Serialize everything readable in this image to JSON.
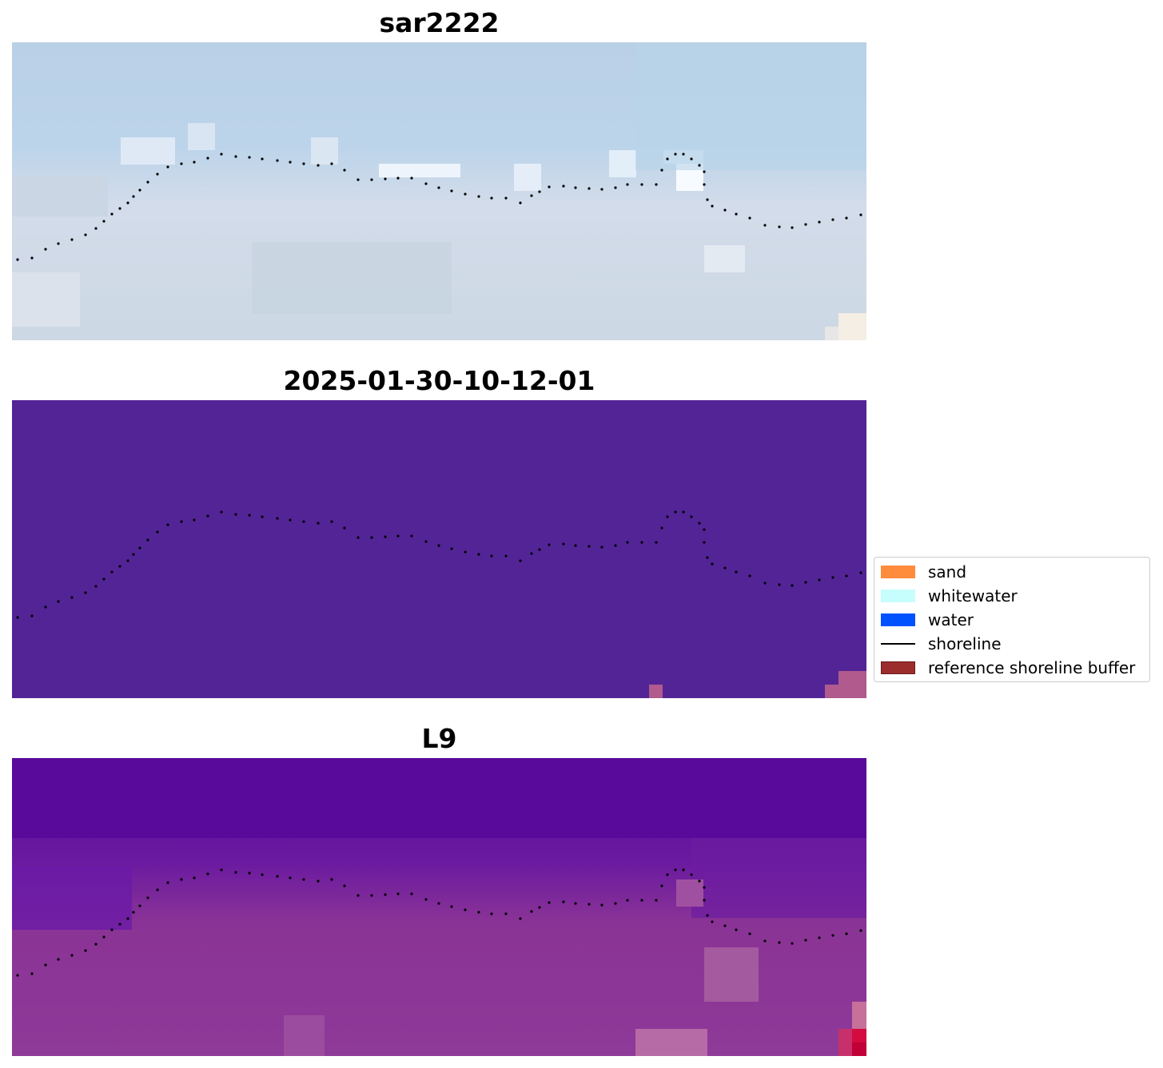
{
  "panels": [
    {
      "title": "sar2222",
      "colors": {
        "bg": "#c4d6e6"
      }
    },
    {
      "title": "2025-01-30-10-12-01",
      "colors": {
        "bg": "#532496"
      }
    },
    {
      "title": "L9",
      "colors": {
        "bg": "#5a0a9a"
      }
    }
  ],
  "legend": {
    "items": [
      {
        "label": "sand",
        "color": "#ff8b3d"
      },
      {
        "label": "whitewater",
        "color": "#c6fdfd"
      },
      {
        "label": "water",
        "color": "#0052ff"
      },
      {
        "label": "shoreline",
        "color": "#000000"
      },
      {
        "label": "reference shoreline buffer",
        "color": "#9b2d2d"
      }
    ]
  }
}
